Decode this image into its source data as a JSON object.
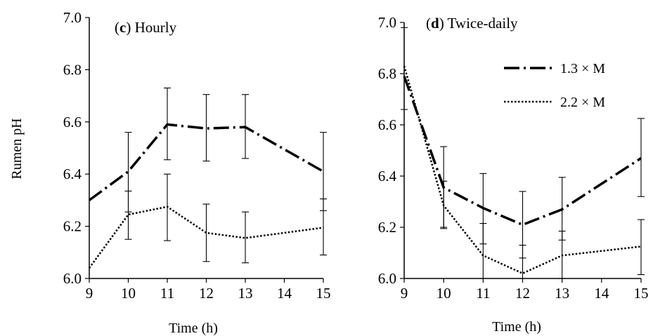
{
  "chart_data": [
    {
      "type": "line",
      "title_letter": "c",
      "title_rest": ") Hourly",
      "title_open": "(",
      "xlabel": "Time (h)",
      "ylabel": "Rumen pH",
      "xlim": [
        9,
        15
      ],
      "ylim": [
        6.0,
        7.0
      ],
      "xticks": [
        "9",
        "10",
        "11",
        "12",
        "13",
        "14",
        "15"
      ],
      "yticks": [
        "6.0",
        "6.2",
        "6.4",
        "6.6",
        "6.8",
        "7.0"
      ],
      "grid": false,
      "series": [
        {
          "style": "dash-dot",
          "points": [
            [
              9,
              6.3
            ],
            [
              10,
              6.41
            ],
            [
              11,
              6.59
            ],
            [
              12,
              6.575
            ],
            [
              13,
              6.58
            ],
            [
              15,
              6.41
            ]
          ],
          "errorbars": [
            [
              10,
              6.255,
              6.56
            ],
            [
              11,
              6.455,
              6.73
            ],
            [
              12,
              6.45,
              6.705
            ],
            [
              13,
              6.46,
              6.705
            ],
            [
              15,
              6.26,
              6.56
            ]
          ]
        },
        {
          "style": "dotted",
          "points": [
            [
              9,
              6.04
            ],
            [
              10,
              6.245
            ],
            [
              11,
              6.275
            ],
            [
              12,
              6.175
            ],
            [
              13,
              6.155
            ],
            [
              15,
              6.195
            ]
          ],
          "errorbars": [
            [
              10,
              6.15,
              6.335
            ],
            [
              11,
              6.145,
              6.4
            ],
            [
              12,
              6.065,
              6.285
            ],
            [
              13,
              6.06,
              6.255
            ],
            [
              15,
              6.09,
              6.305
            ]
          ]
        }
      ]
    },
    {
      "type": "line",
      "title_letter": "d",
      "title_rest": ") Twice-daily",
      "title_open": "(",
      "xlabel": "Time (h)",
      "ylabel": "",
      "xlim": [
        9,
        15
      ],
      "ylim": [
        6.0,
        7.0
      ],
      "xticks": [
        "9",
        "10",
        "11",
        "12",
        "13",
        "14",
        "15"
      ],
      "yticks": [
        "6.0",
        "6.2",
        "6.4",
        "6.6",
        "6.8",
        "7.0"
      ],
      "grid": false,
      "legend_position": "top-right",
      "series": [
        {
          "name": "1.3 × M",
          "style": "dash-dot",
          "points": [
            [
              9,
              6.79
            ],
            [
              10,
              6.355
            ],
            [
              11,
              6.275
            ],
            [
              12,
              6.21
            ],
            [
              13,
              6.27
            ],
            [
              15,
              6.47
            ]
          ],
          "errorbars": [
            [
              9,
              6.66,
              6.98
            ],
            [
              10,
              6.2,
              6.515
            ],
            [
              11,
              6.135,
              6.41
            ],
            [
              12,
              6.08,
              6.34
            ],
            [
              13,
              6.15,
              6.395
            ],
            [
              15,
              6.32,
              6.625
            ]
          ]
        },
        {
          "name": "2.2 × M",
          "style": "dotted",
          "points": [
            [
              9,
              6.83
            ],
            [
              10,
              6.285
            ],
            [
              11,
              6.09
            ],
            [
              12,
              6.02
            ],
            [
              13,
              6.09
            ],
            [
              15,
              6.125
            ]
          ],
          "errorbars": [
            [
              10,
              6.195,
              6.38
            ],
            [
              11,
              6.0,
              6.215
            ],
            [
              12,
              6.0,
              6.13
            ],
            [
              13,
              6.0,
              6.185
            ],
            [
              15,
              6.015,
              6.23
            ]
          ]
        }
      ]
    }
  ]
}
